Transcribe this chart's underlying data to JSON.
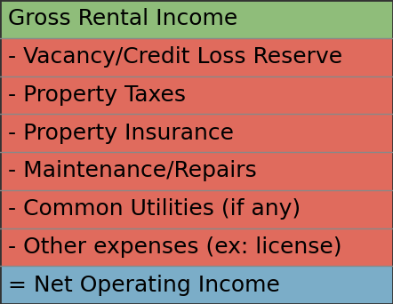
{
  "rows": [
    {
      "text": "Gross Rental Income",
      "color": "#8FBD7A",
      "text_color": "#000000"
    },
    {
      "text": "- Vacancy/Credit Loss Reserve",
      "color": "#E06B5D",
      "text_color": "#000000"
    },
    {
      "text": "- Property Taxes",
      "color": "#E06B5D",
      "text_color": "#000000"
    },
    {
      "text": "- Property Insurance",
      "color": "#E06B5D",
      "text_color": "#000000"
    },
    {
      "text": "- Maintenance/Repairs",
      "color": "#E06B5D",
      "text_color": "#000000"
    },
    {
      "text": "- Common Utilities (if any)",
      "color": "#E06B5D",
      "text_color": "#000000"
    },
    {
      "text": "- Other expenses (ex: license)",
      "color": "#E06B5D",
      "text_color": "#000000"
    },
    {
      "text": "= Net Operating Income",
      "color": "#7BADC8",
      "text_color": "#000000"
    }
  ],
  "border_color": "#555555",
  "divider_color": "#888888",
  "outer_border_color": "#333333",
  "border_linewidth": 1.0,
  "outer_border_linewidth": 2.0,
  "font_size": 18,
  "fig_width": 4.42,
  "fig_height": 3.42,
  "dpi": 100
}
